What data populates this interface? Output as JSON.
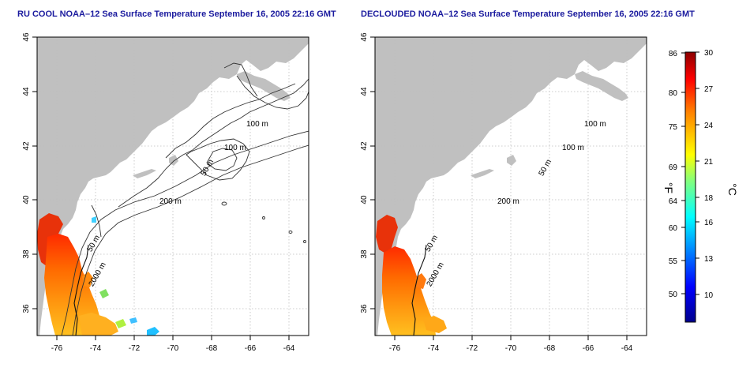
{
  "panels": [
    {
      "id": "left",
      "title": "RU COOL NOAA–12 Sea Surface Temperature September 16, 2005 22:16 GMT"
    },
    {
      "id": "right",
      "title": "DECLOUDED NOAA–12 Sea Surface Temperature September 16, 2005 22:16 GMT"
    }
  ],
  "map": {
    "lon_range": [
      -77,
      -63
    ],
    "lat_range": [
      35,
      46
    ],
    "lon_ticks": [
      "-76",
      "-74",
      "-72",
      "-70",
      "-68",
      "-66",
      "-64"
    ],
    "lat_ticks": [
      "36",
      "38",
      "40",
      "42",
      "44",
      "46"
    ],
    "grid": "dotted",
    "land_color": "#c0c0c0",
    "ocean_color": "#ffffff",
    "contour_labels": [
      "100 m",
      "100 m",
      "50 m",
      "200 m",
      "50 m",
      "2000 m"
    ]
  },
  "colorbar": {
    "celsius_ticks": [
      "30",
      "27",
      "24",
      "21",
      "18",
      "16",
      "13",
      "10"
    ],
    "fahrenheit_ticks": [
      "86",
      "80",
      "75",
      "69",
      "64",
      "60",
      "55",
      "50"
    ],
    "celsius_unit": "°C",
    "fahrenheit_unit": "°F",
    "celsius_range": [
      7,
      30
    ],
    "colors": [
      "#00008c",
      "#0000ff",
      "#0080ff",
      "#00ffff",
      "#80ff80",
      "#ffff00",
      "#ff8000",
      "#ff0000",
      "#8c0000"
    ]
  }
}
